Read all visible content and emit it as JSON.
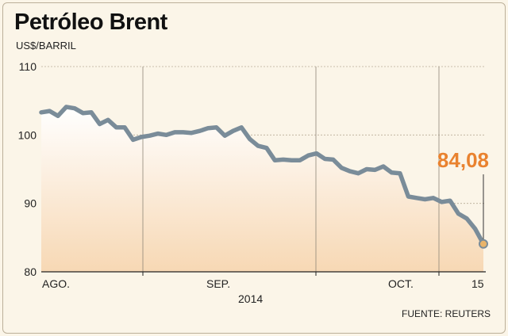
{
  "title": "Petróleo Brent",
  "unit": "US$/BARRIL",
  "source": "FUENTE: REUTERS",
  "year_label": "2014",
  "colors": {
    "line": "#7a8c99",
    "marker": "#e9b46a",
    "accent": "#e9822f",
    "fill_top": "#ffffff",
    "fill_bottom": "#f7d8b4"
  },
  "chart_data": {
    "type": "area",
    "title": "Petróleo Brent",
    "ylabel": "US$/BARRIL",
    "ylim": [
      80,
      110
    ],
    "yticks": [
      80,
      90,
      100,
      110
    ],
    "ytick_labels": [
      "80",
      "90",
      "100",
      "110"
    ],
    "grid": true,
    "x_tick_labels": [
      "AGO.",
      "SEP.",
      "OCT.",
      "15"
    ],
    "last_value_label": "84,08",
    "series": [
      {
        "values": [
          103.3,
          103.5,
          102.8,
          104.1,
          103.9,
          103.2,
          103.3,
          101.6,
          102.2,
          101.1,
          101.1,
          99.3,
          99.7,
          99.9,
          100.2,
          100.0,
          100.4,
          100.4,
          100.3,
          100.6,
          101.0,
          101.1,
          99.9,
          100.6,
          101.1,
          99.4,
          98.4,
          98.1,
          96.3,
          96.4,
          96.3,
          96.3,
          97.0,
          97.3,
          96.5,
          96.4,
          95.2,
          94.7,
          94.4,
          95.0,
          94.9,
          95.4,
          94.5,
          94.4,
          91.0,
          90.8,
          90.6,
          90.8,
          90.2,
          90.4,
          88.5,
          87.8,
          86.3,
          84.08
        ]
      }
    ]
  }
}
